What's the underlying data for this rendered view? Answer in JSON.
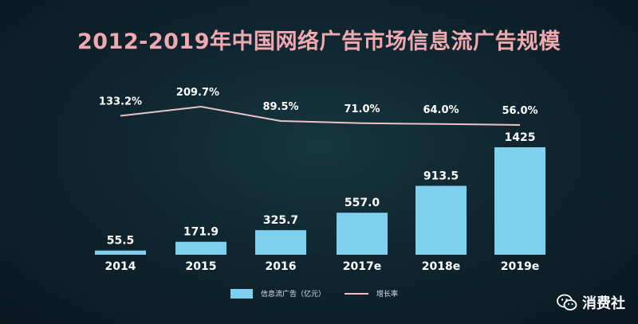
{
  "chart_data": {
    "type": "bar",
    "title": "2012-2019年中国网络广告市场信息流广告规模",
    "categories": [
      "2014",
      "2015",
      "2016",
      "2017e",
      "2018e",
      "2019e"
    ],
    "series": [
      {
        "name": "信息流广告（亿元）",
        "type": "bar",
        "values": [
          55.5,
          171.9,
          325.7,
          557.0,
          913.5,
          1425
        ],
        "labels": [
          "55.5",
          "171.9",
          "325.7",
          "557.0",
          "913.5",
          "1425"
        ],
        "color": "#7ed0ee"
      },
      {
        "name": "增长率",
        "type": "line",
        "values": [
          133.2,
          209.7,
          89.5,
          71.0,
          64.0,
          56.0
        ],
        "labels": [
          "133.2%",
          "209.7%",
          "89.5%",
          "71.0%",
          "64.0%",
          "56.0%"
        ],
        "color": "#e9c3c7"
      }
    ],
    "legend_position": "bottom-center",
    "grid": false
  },
  "watermark": {
    "text": "消费社",
    "icon": "wechat-icon"
  }
}
